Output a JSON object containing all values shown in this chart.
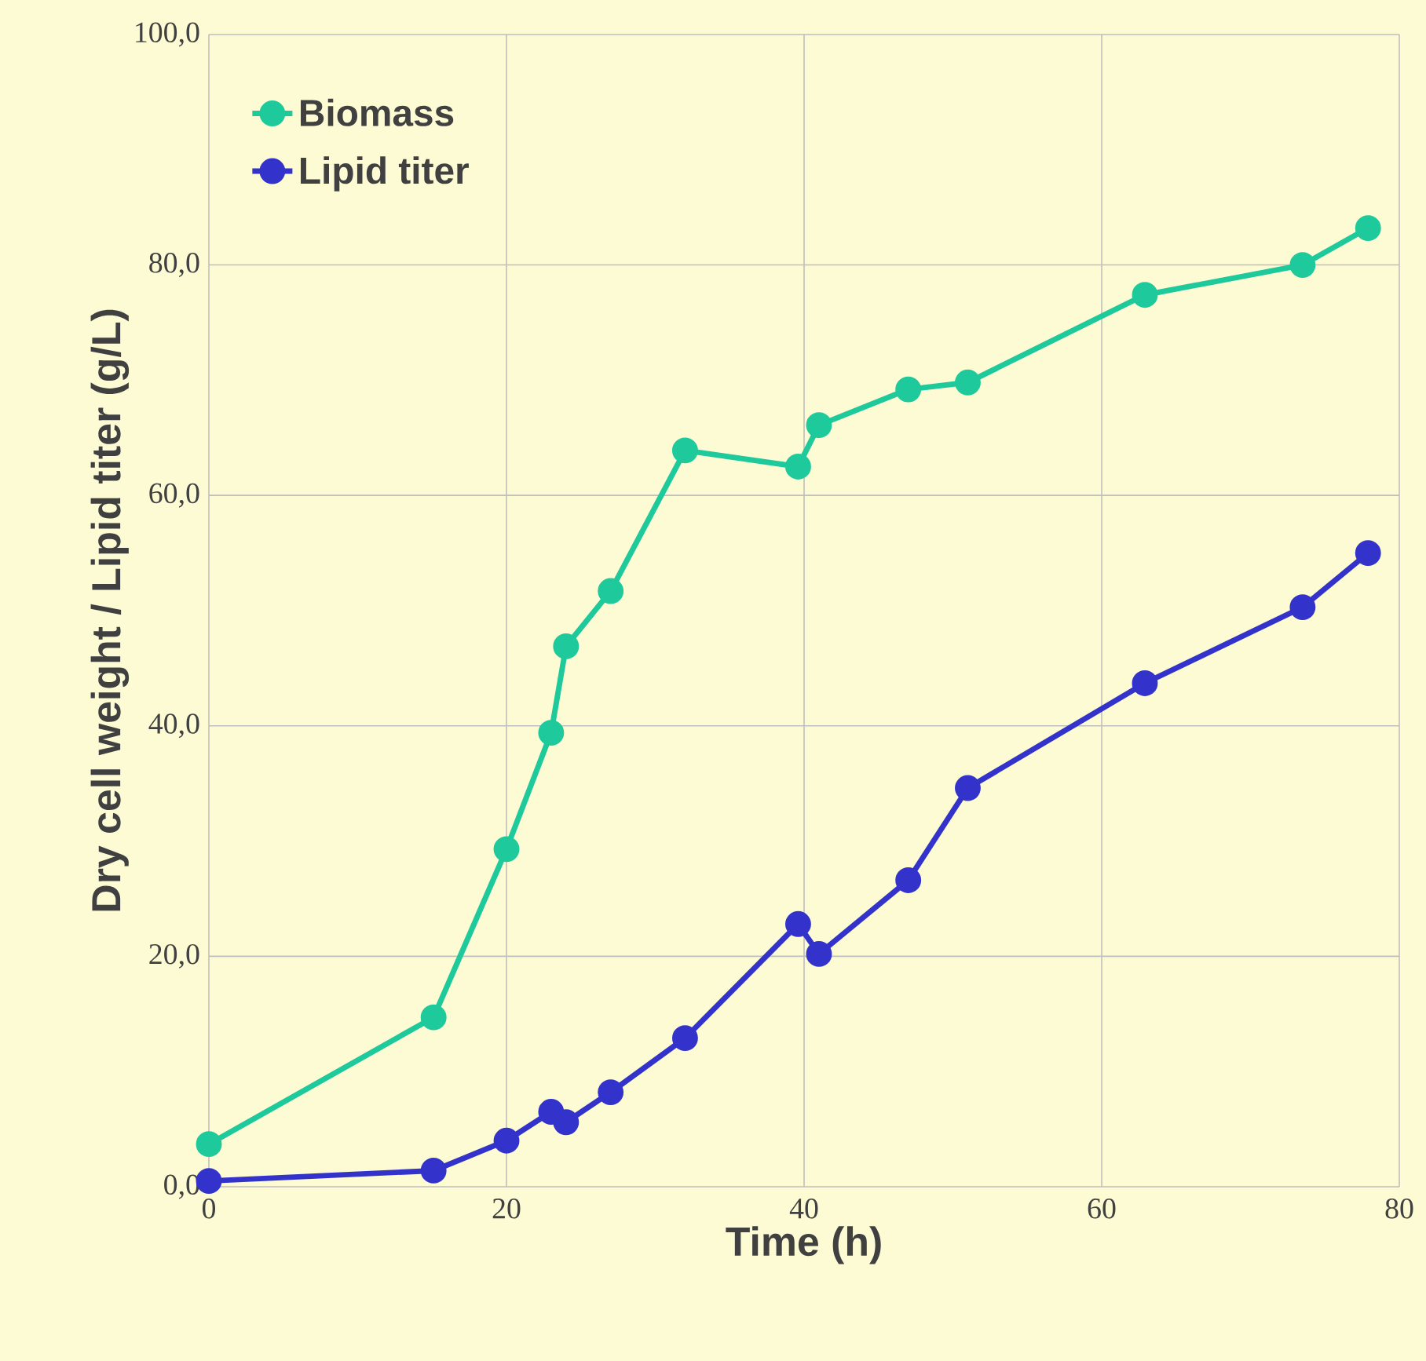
{
  "chart_data": {
    "type": "line",
    "xlabel": "Time (h)",
    "ylabel": "Dry cell weight / Lipid titer (g/L)",
    "xlim": [
      0,
      80
    ],
    "xticks": [
      0,
      20,
      40,
      60,
      80
    ],
    "ylim": [
      0,
      100
    ],
    "yticks": [
      {
        "value": 0,
        "label": "0,0"
      },
      {
        "value": 20,
        "label": "20,0"
      },
      {
        "value": 40,
        "label": "40,0"
      },
      {
        "value": 60,
        "label": "60,0"
      },
      {
        "value": 80,
        "label": "80,0"
      },
      {
        "value": 100,
        "label": "100,0"
      }
    ],
    "grid": true,
    "legend": "top left",
    "marker": "circle",
    "line_style": "solid",
    "series": [
      {
        "name": "Biomass",
        "color": "#1ec99b",
        "x": [
          0,
          15.1,
          20,
          23,
          24,
          27,
          32,
          39.6,
          41,
          47,
          51,
          62.9,
          73.5,
          77.9
        ],
        "values": [
          3.7,
          14.7,
          29.3,
          39.4,
          46.9,
          51.7,
          63.9,
          62.5,
          66.1,
          69.2,
          69.8,
          77.4,
          80.0,
          83.2
        ]
      },
      {
        "name": "Lipid titer",
        "color": "#3333cc",
        "x": [
          0,
          15.1,
          20,
          23,
          24,
          27,
          32,
          39.6,
          41,
          47,
          51,
          62.9,
          73.5,
          77.9
        ],
        "values": [
          0.5,
          1.4,
          4.0,
          6.5,
          5.6,
          8.2,
          12.9,
          22.8,
          20.2,
          26.6,
          34.6,
          43.7,
          50.3,
          55.0
        ]
      }
    ]
  }
}
